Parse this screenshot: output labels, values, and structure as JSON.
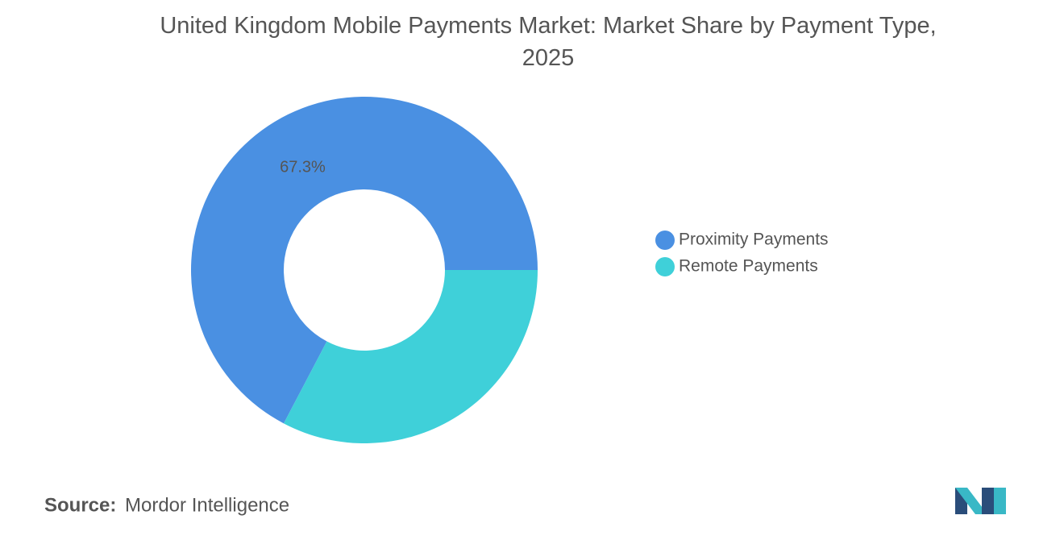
{
  "chart_data": {
    "type": "donut",
    "title": "United Kingdom Mobile Payments Market: Market Share by Payment Type, 2025",
    "categories": [
      "Proximity Payments",
      "Remote Payments"
    ],
    "values": [
      67.3,
      32.7
    ],
    "value_labels": [
      "67.3%",
      null
    ],
    "colors": [
      "#4a90e2",
      "#3fd0d9"
    ],
    "legend": "right",
    "source_label": "Source:",
    "source": "Mordor Intelligence"
  }
}
